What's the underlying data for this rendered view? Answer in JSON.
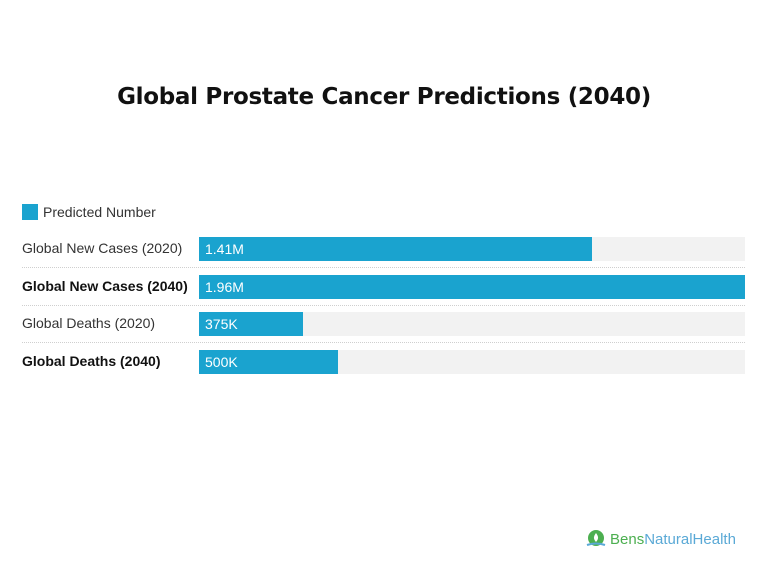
{
  "title": "Global Prostate Cancer Predictions (2040)",
  "legend": {
    "label": "Predicted Number",
    "color": "#1aa3cf"
  },
  "rows": [
    {
      "label": "Global New Cases (2020)",
      "value_label": "1.41M",
      "value": 1410000,
      "bold": false,
      "pct": "71.9%"
    },
    {
      "label": "Global New Cases (2040)",
      "value_label": "1.96M",
      "value": 1960000,
      "bold": true,
      "pct": "100%"
    },
    {
      "label": "Global Deaths (2020)",
      "value_label": "375K",
      "value": 375000,
      "bold": false,
      "pct": "19.1%"
    },
    {
      "label": "Global Deaths (2040)",
      "value_label": "500K",
      "value": 500000,
      "bold": true,
      "pct": "25.5%"
    }
  ],
  "brand": {
    "part1": "Bens",
    "part2": "NaturalHealth"
  },
  "chart_data": {
    "type": "bar",
    "orientation": "horizontal",
    "title": "Global Prostate Cancer Predictions (2040)",
    "categories": [
      "Global New Cases (2020)",
      "Global New Cases (2040)",
      "Global Deaths (2020)",
      "Global Deaths (2040)"
    ],
    "series": [
      {
        "name": "Predicted Number",
        "values": [
          1410000,
          1960000,
          375000,
          500000
        ],
        "labels": [
          "1.41M",
          "1.96M",
          "375K",
          "500K"
        ],
        "color": "#1aa3cf"
      }
    ],
    "xlabel": "",
    "ylabel": "",
    "xlim": [
      0,
      1960000
    ],
    "grid": false,
    "legend_position": "top-left"
  }
}
